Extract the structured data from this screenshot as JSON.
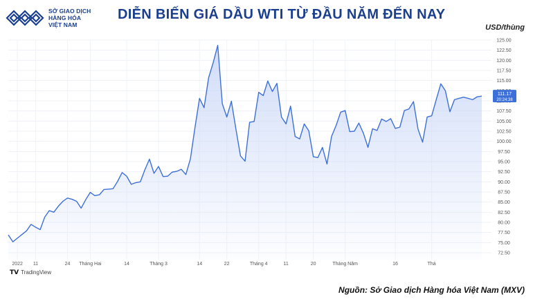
{
  "header": {
    "logo_line1": "SỞ GIAO DỊCH",
    "logo_line2": "HÀNG HÓA",
    "logo_line3": "VIỆT NAM",
    "title": "DIỄN BIẾN GIÁ DẦU WTI TỪ ĐẦU NĂM ĐẾN NAY",
    "unit": "USD/thùng"
  },
  "footer": {
    "tradingview": "TradingView",
    "source": "Nguồn: Sở Giao dịch Hàng hóa Việt Nam (MXV)"
  },
  "colors": {
    "brand": "#1b3f8f",
    "line": "#3d6fd9",
    "fill_top": "#c9d7f7",
    "grid": "#eef1f6"
  },
  "chart_data": {
    "type": "area",
    "ylim": [
      72.5,
      125
    ],
    "yticks": [
      72.5,
      75.0,
      77.5,
      80.0,
      82.5,
      85.0,
      87.5,
      90.0,
      92.5,
      95.0,
      97.5,
      100.0,
      102.5,
      105.0,
      107.5,
      110.0,
      112.5,
      115.0,
      117.5,
      120.0,
      122.5,
      125.0
    ],
    "xticks": [
      {
        "label": "2022",
        "i": 2
      },
      {
        "label": "11",
        "i": 6
      },
      {
        "label": "24",
        "i": 13
      },
      {
        "label": "Tháng Hai",
        "i": 18
      },
      {
        "label": "14",
        "i": 26
      },
      {
        "label": "Tháng 3",
        "i": 33
      },
      {
        "label": "14",
        "i": 42
      },
      {
        "label": "22",
        "i": 48
      },
      {
        "label": "Tháng 4",
        "i": 55
      },
      {
        "label": "11",
        "i": 61
      },
      {
        "label": "20",
        "i": 67
      },
      {
        "label": "Tháng Năm",
        "i": 74
      },
      {
        "label": "16",
        "i": 85
      },
      {
        "label": "Thá",
        "i": 93
      }
    ],
    "last_price": "111.17",
    "last_time": "20:24:38",
    "values": [
      76.9,
      75.2,
      76.1,
      77.0,
      77.9,
      79.5,
      78.8,
      78.2,
      81.3,
      82.9,
      82.5,
      84.0,
      85.2,
      86.0,
      85.7,
      85.2,
      83.5,
      85.6,
      87.4,
      86.6,
      86.8,
      88.1,
      88.2,
      88.3,
      90.1,
      92.3,
      91.4,
      89.4,
      89.8,
      90.0,
      93.0,
      95.6,
      92.1,
      93.8,
      91.3,
      91.4,
      92.4,
      92.6,
      93.1,
      91.8,
      95.7,
      103.4,
      110.6,
      108.3,
      115.7,
      119.4,
      123.7,
      109.3,
      106.0,
      109.9,
      103.0,
      96.4,
      95.1,
      104.7,
      104.9,
      112.1,
      111.3,
      114.9,
      112.3,
      114.3,
      106.0,
      104.3,
      108.7,
      101.2,
      100.6,
      104.3,
      102.6,
      96.2,
      96.0,
      98.5,
      94.4,
      101.2,
      103.9,
      107.2,
      107.6,
      102.4,
      102.5,
      104.5,
      102.0,
      98.5,
      103.1,
      102.7,
      105.5,
      104.9,
      105.6,
      103.2,
      103.5,
      107.6,
      108.0,
      109.8,
      103.0,
      99.8,
      106.0,
      106.3,
      110.3,
      114.2,
      112.5,
      107.3,
      110.3,
      110.6,
      110.9,
      110.6,
      110.3,
      111.0,
      111.17
    ]
  }
}
